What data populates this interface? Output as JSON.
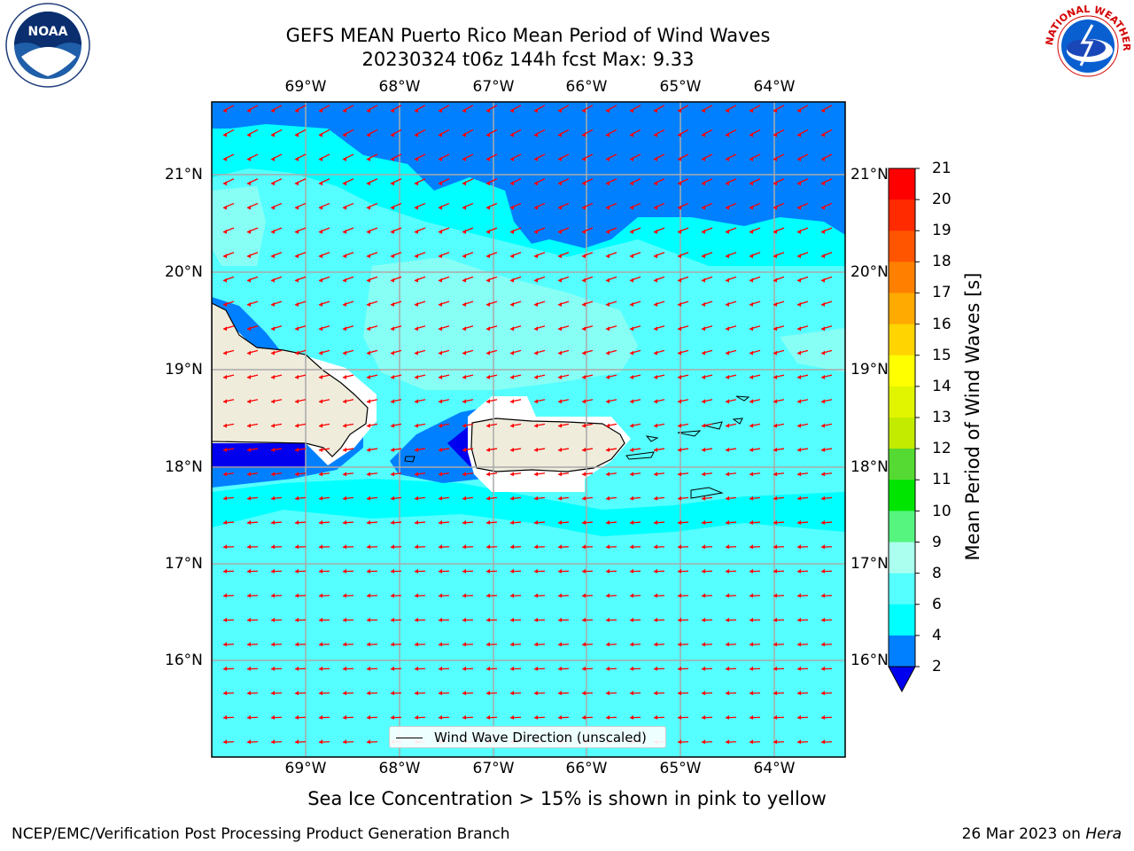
{
  "header": {
    "title_line1": "GEFS MEAN Puerto Rico Mean Period of Wind Waves",
    "title_line2": "20230324 t06z 144h fcst   Max: 9.33"
  },
  "logos": {
    "left": {
      "name": "noaa-logo",
      "text": "NOAA"
    },
    "right": {
      "name": "nws-logo",
      "text": "NATIONAL WEATHER SERVICE"
    }
  },
  "map": {
    "lon_labels": [
      "69°W",
      "68°W",
      "67°W",
      "66°W",
      "65°W",
      "64°W"
    ],
    "lat_labels": [
      "21°N",
      "20°N",
      "19°N",
      "18°N",
      "17°N",
      "16°N"
    ],
    "arrow_color": "#ff0000",
    "land_color": "#efecdc",
    "legend_text": "Wind Wave Direction (unscaled)"
  },
  "colorbar": {
    "label": "Mean Period of Wind Waves [s]",
    "ticks": [
      "21",
      "20",
      "19",
      "18",
      "17",
      "16",
      "15",
      "14",
      "13",
      "12",
      "11",
      "10",
      "9",
      "8",
      "6",
      "4",
      "2"
    ],
    "colors": [
      "#ff0000",
      "#ff2a00",
      "#ff5500",
      "#ff8000",
      "#ffaa00",
      "#ffd400",
      "#ffff00",
      "#e1f500",
      "#c3eb00",
      "#55d933",
      "#00e500",
      "#55f57f",
      "#aaffee",
      "#55ffff",
      "#00ffff",
      "#0080ff",
      "#0000ee"
    ]
  },
  "notes": {
    "ice": "Sea Ice Concentration > 15% is shown in pink to yellow"
  },
  "footer": {
    "left": "NCEP/EMC/Verification Post Processing Product Generation Branch",
    "date": "26 Mar 2023 on",
    "machine": "Hera"
  }
}
